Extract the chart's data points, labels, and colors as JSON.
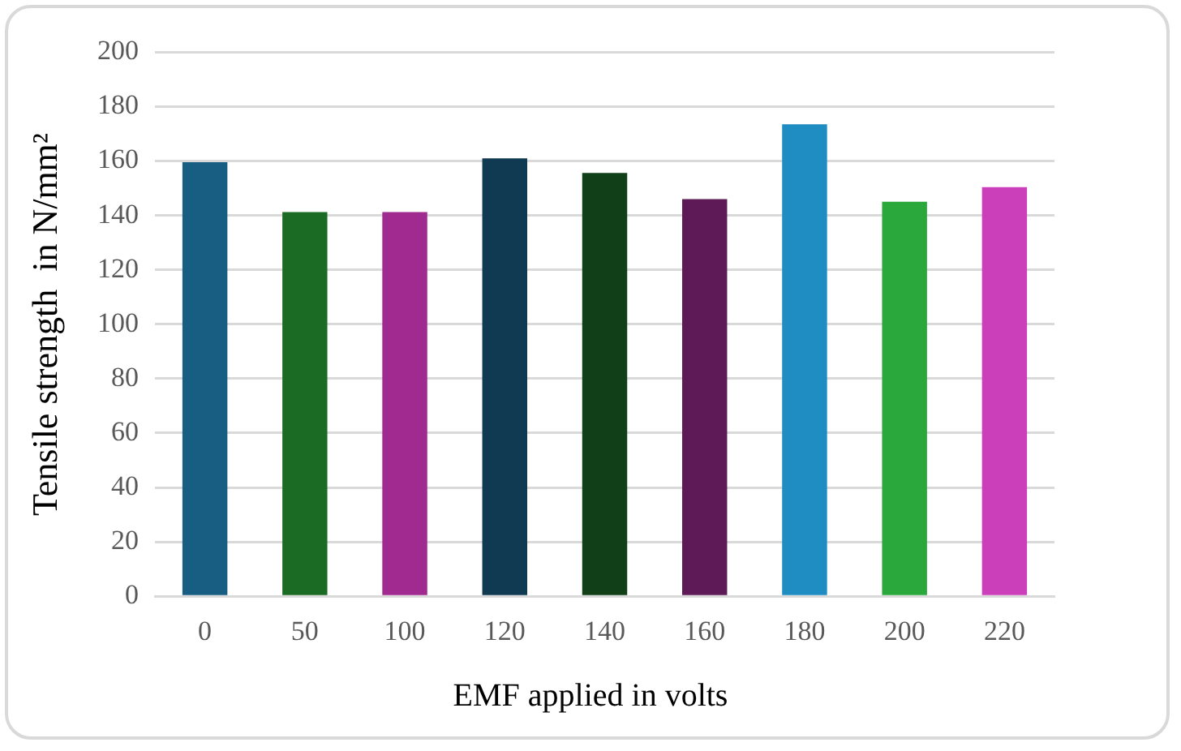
{
  "chart_data": {
    "type": "bar",
    "xlabel": "EMF applied in volts",
    "ylabel": "Tensile strength  in N/mm²",
    "categories": [
      "0",
      "50",
      "100",
      "120",
      "140",
      "160",
      "180",
      "200",
      "220"
    ],
    "values": [
      159.6,
      141.2,
      141.2,
      161,
      155.6,
      146,
      173.5,
      145,
      150.4
    ],
    "colors": [
      "#175e82",
      "#1b6b25",
      "#a02a8f",
      "#0f3a52",
      "#113f18",
      "#5e1a57",
      "#208dc2",
      "#2aa83c",
      "#cc3fbb"
    ],
    "ylim": [
      0,
      200
    ],
    "yticks": [
      0,
      20,
      40,
      60,
      80,
      100,
      120,
      140,
      160,
      180,
      200
    ],
    "grid": "y"
  }
}
